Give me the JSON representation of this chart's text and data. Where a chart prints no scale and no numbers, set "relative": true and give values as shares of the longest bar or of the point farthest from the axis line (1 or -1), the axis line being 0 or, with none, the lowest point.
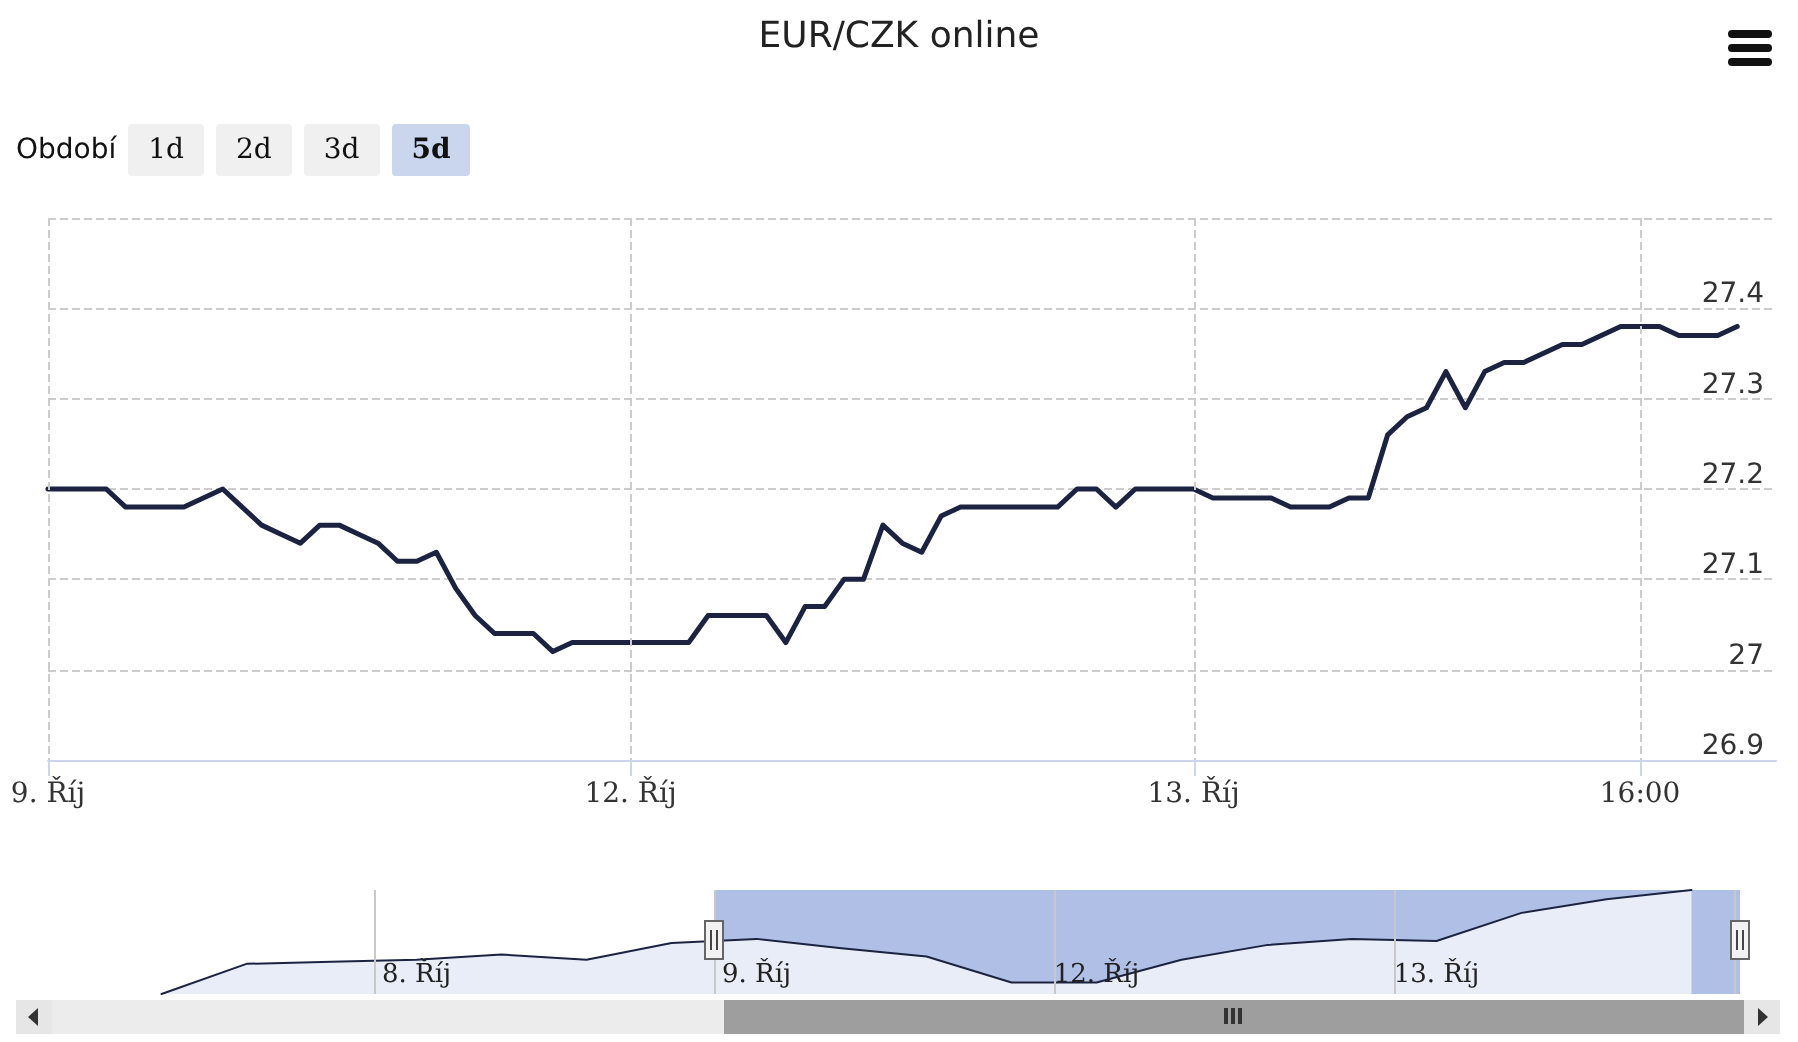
{
  "chart_data": [
    {
      "type": "line",
      "title": "EUR/CZK online",
      "annotations": [
        "Období",
        "1d",
        "2d",
        "3d",
        "5d"
      ],
      "categories": [
        "9. Říj",
        null,
        null,
        null,
        null,
        null,
        null,
        null,
        null,
        null,
        null,
        null,
        null,
        null,
        null,
        null,
        null,
        null,
        null,
        null,
        null,
        null,
        null,
        null,
        null,
        null,
        null,
        null,
        null,
        null,
        "12. Říj",
        null,
        null,
        null,
        null,
        null,
        null,
        null,
        null,
        null,
        null,
        null,
        null,
        null,
        null,
        null,
        null,
        null,
        null,
        null,
        null,
        null,
        null,
        null,
        null,
        null,
        null,
        null,
        null,
        "13. Říj",
        null,
        null,
        null,
        null,
        null,
        null,
        null,
        null,
        null,
        null,
        null,
        null,
        null,
        null,
        null,
        null,
        null,
        null,
        null,
        null,
        null,
        null,
        "16:00",
        null,
        null,
        null,
        null,
        null,
        null,
        null
      ],
      "series": [
        {
          "color": "#1b2340",
          "values": [
            27.2,
            27.2,
            27.2,
            27.2,
            27.18,
            27.18,
            27.18,
            27.18,
            27.19,
            27.2,
            27.18,
            27.16,
            27.15,
            27.14,
            27.16,
            27.16,
            27.15,
            27.14,
            27.12,
            27.12,
            27.13,
            27.09,
            27.06,
            27.04,
            27.04,
            27.04,
            27.02,
            27.03,
            27.03,
            27.03,
            27.03,
            27.03,
            27.03,
            27.03,
            27.06,
            27.06,
            27.06,
            27.06,
            27.03,
            27.07,
            27.07,
            27.1,
            27.1,
            27.16,
            27.14,
            27.13,
            27.17,
            27.18,
            27.18,
            27.18,
            27.18,
            27.18,
            27.18,
            27.2,
            27.2,
            27.18,
            27.2,
            27.2,
            27.2,
            27.2,
            27.19,
            27.19,
            27.19,
            27.19,
            27.18,
            27.18,
            27.18,
            27.19,
            27.19,
            27.26,
            27.28,
            27.29,
            27.33,
            27.29,
            27.33,
            27.34,
            27.34,
            27.35,
            27.36,
            27.36,
            27.37,
            27.38,
            27.38,
            27.38,
            27.37,
            27.37,
            27.37,
            27.38,
            null,
            null
          ]
        }
      ],
      "ylim": [
        26.9,
        27.5
      ],
      "yticks": [
        26.9,
        27,
        27.1,
        27.2,
        27.3,
        27.4,
        {
          "value": 27.5,
          "label": null
        }
      ],
      "grid": true,
      "marker": "none"
    },
    {
      "type": "area",
      "relative": true,
      "categories": [
        null,
        null,
        null,
        null,
        "8. Říj",
        null,
        null,
        null,
        "9. Říj",
        null,
        null,
        null,
        "12. Říj",
        null,
        null,
        null,
        "13. Říj",
        null,
        null,
        null
      ],
      "series": [
        {
          "color": "#1b2340",
          "values": [
            null,
            0,
            0.29,
            0.31,
            0.33,
            0.38,
            0.33,
            0.49,
            0.53,
            0.44,
            0.36,
            0.11,
            0.11,
            0.33,
            0.47,
            0.53,
            0.51,
            0.78,
            0.91,
            1
          ]
        }
      ],
      "grid": "x",
      "marker": "none",
      "tick_labels": "x"
    }
  ]
}
